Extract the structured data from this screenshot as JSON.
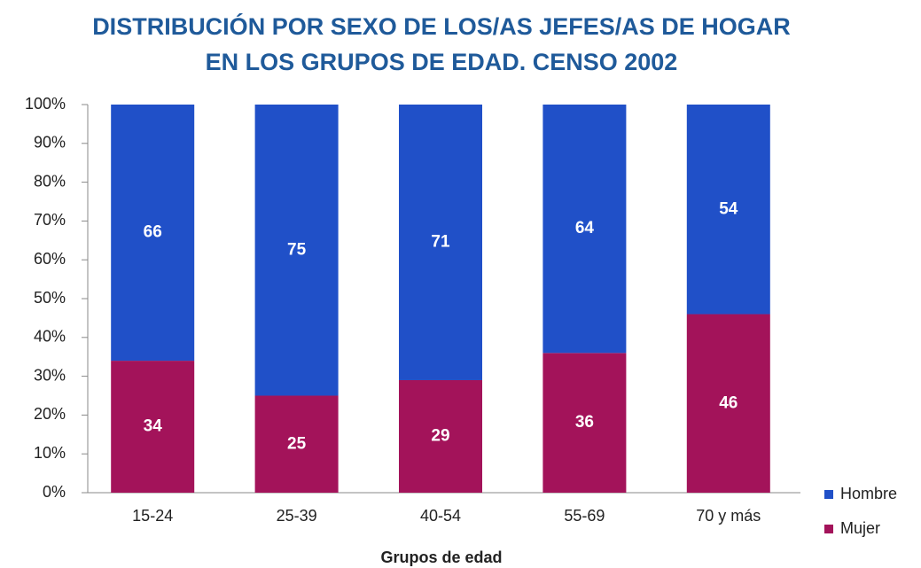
{
  "chart_data": {
    "type": "stacked_bar",
    "title": [
      "DISTRIBUCIÓN POR SEXO DE LOS/AS JEFES/AS DE HOGAR",
      "EN LOS GRUPOS DE EDAD. CENSO 2002"
    ],
    "x_label": "Grupos de edad",
    "categories": [
      "15-24",
      "25-39",
      "40-54",
      "55-69",
      "70 y más"
    ],
    "series": [
      {
        "name": "Mujer",
        "color": "#a3135a",
        "values": [
          34,
          25,
          29,
          36,
          46
        ]
      },
      {
        "name": "Hombre",
        "color": "#2050c8",
        "values": [
          66,
          75,
          71,
          64,
          54
        ]
      }
    ],
    "ylim": [
      0,
      100
    ],
    "yticks": [
      {
        "value": 0,
        "label": "0%"
      },
      {
        "value": 10,
        "label": "10%"
      },
      {
        "value": 20,
        "label": "20%"
      },
      {
        "value": 30,
        "label": "30%"
      },
      {
        "value": 40,
        "label": "40%"
      },
      {
        "value": 50,
        "label": "50%"
      },
      {
        "value": 60,
        "label": "60%"
      },
      {
        "value": 70,
        "label": "70%"
      },
      {
        "value": 80,
        "label": "80%"
      },
      {
        "value": 90,
        "label": "90%"
      },
      {
        "value": 100,
        "label": "100%"
      }
    ],
    "legend": "right"
  }
}
